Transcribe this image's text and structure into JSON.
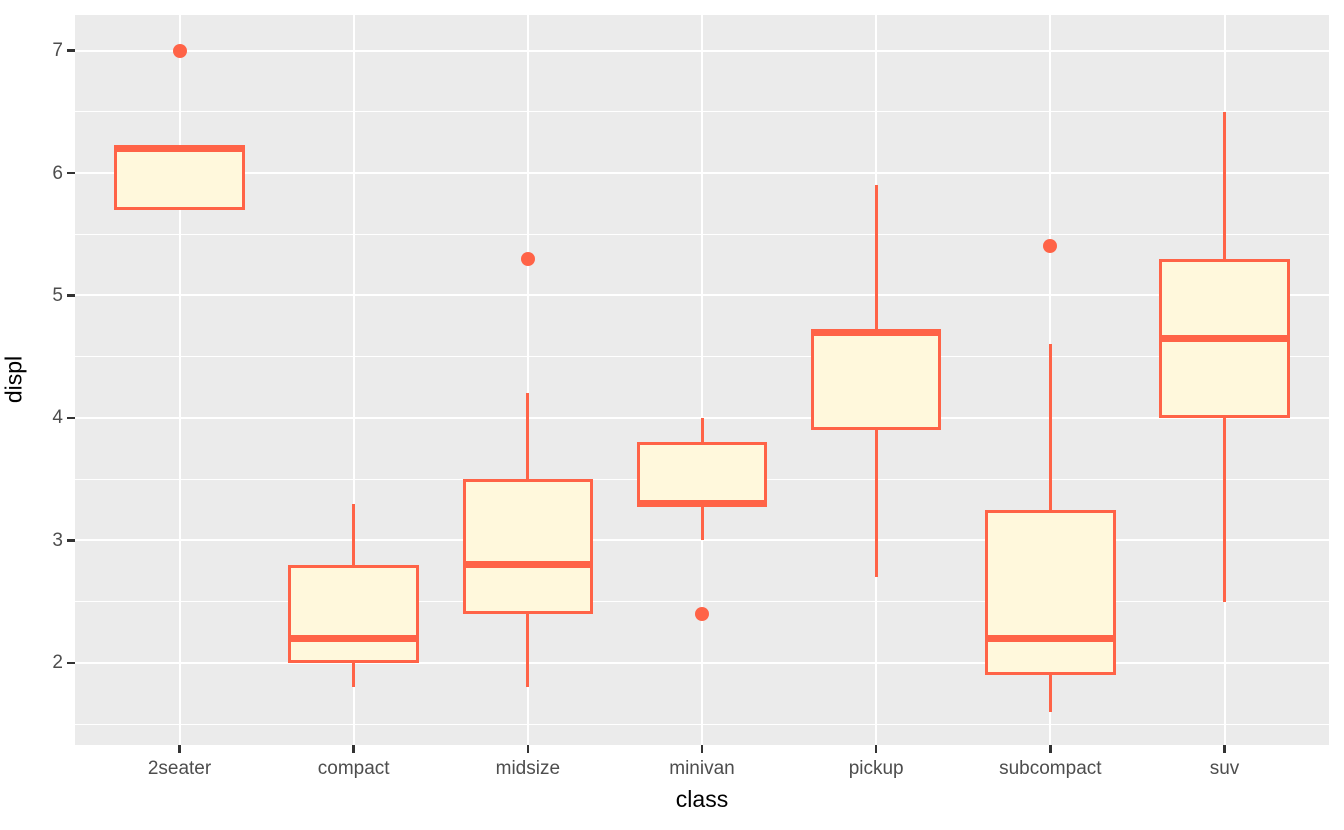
{
  "chart_data": {
    "type": "boxplot",
    "title": "",
    "xlabel": "class",
    "ylabel": "displ",
    "grid": "on",
    "legend": "none",
    "categories": [
      "2seater",
      "compact",
      "midsize",
      "minivan",
      "pickup",
      "subcompact",
      "suv"
    ],
    "series": [
      {
        "category": "2seater",
        "whisker_low": 5.7,
        "q1": 5.7,
        "median": 6.2,
        "q3": 6.2,
        "whisker_high": 6.2,
        "outliers": [
          7.0
        ]
      },
      {
        "category": "compact",
        "whisker_low": 1.8,
        "q1": 2.0,
        "median": 2.2,
        "q3": 2.8,
        "whisker_high": 3.3,
        "outliers": []
      },
      {
        "category": "midsize",
        "whisker_low": 1.8,
        "q1": 2.4,
        "median": 2.8,
        "q3": 3.5,
        "whisker_high": 4.2,
        "outliers": [
          5.3
        ]
      },
      {
        "category": "minivan",
        "whisker_low": 3.0,
        "q1": 3.3,
        "median": 3.3,
        "q3": 3.8,
        "whisker_high": 4.0,
        "outliers": [
          2.4
        ]
      },
      {
        "category": "pickup",
        "whisker_low": 2.7,
        "q1": 3.9,
        "median": 4.7,
        "q3": 4.7,
        "whisker_high": 5.9,
        "outliers": []
      },
      {
        "category": "subcompact",
        "whisker_low": 1.6,
        "q1": 1.9,
        "median": 2.2,
        "q3": 3.25,
        "whisker_high": 4.6,
        "outliers": [
          5.4
        ]
      },
      {
        "category": "suv",
        "whisker_low": 2.5,
        "q1": 4.0,
        "median": 4.65,
        "q3": 5.3,
        "whisker_high": 6.5,
        "outliers": []
      }
    ],
    "y_axis": {
      "ticks": [
        2,
        3,
        4,
        5,
        6,
        7
      ],
      "minor_ticks": [
        1.5,
        2.5,
        3.5,
        4.5,
        5.5,
        6.5
      ],
      "range": [
        1.33,
        7.29
      ]
    },
    "colors": {
      "box_border": "#FF6347",
      "box_fill": "#FFF8DC",
      "panel_bg": "#EBEBEB",
      "grid": "#FFFFFF",
      "tick_label": "#4D4D4D",
      "axis_title": "#000000",
      "tick_mark": "#333333"
    }
  }
}
